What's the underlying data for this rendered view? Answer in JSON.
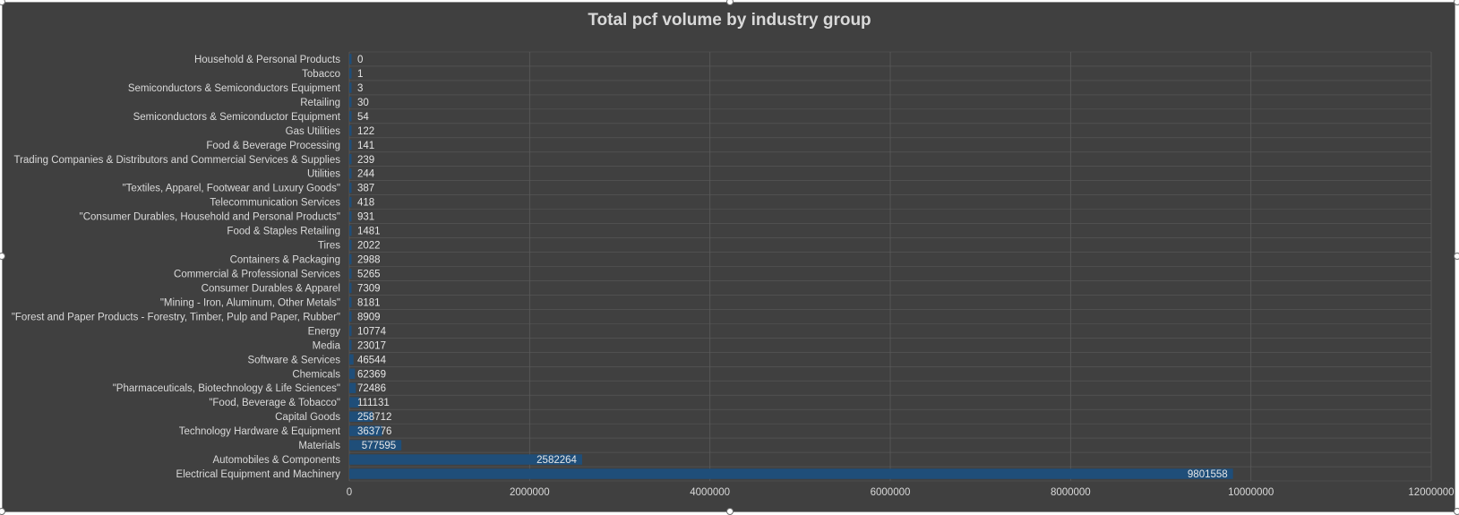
{
  "chart_data": {
    "type": "bar",
    "orientation": "horizontal",
    "title": "Total pcf volume by industry group",
    "xlim": [
      0,
      12000000
    ],
    "xticks": [
      "0",
      "2000000",
      "4000000",
      "6000000",
      "8000000",
      "10000000",
      "12000000"
    ],
    "grid": true,
    "categories": [
      "Household & Personal Products",
      "Tobacco",
      "Semiconductors & Semiconductors Equipment",
      "Retailing",
      "Semiconductors & Semiconductor Equipment",
      "Gas Utilities",
      "Food & Beverage Processing",
      "Trading Companies & Distributors and Commercial Services & Supplies",
      "Utilities",
      "\"Textiles, Apparel, Footwear and Luxury Goods\"",
      "Telecommunication Services",
      "\"Consumer Durables, Household and Personal Products\"",
      "Food & Staples Retailing",
      "Tires",
      "Containers & Packaging",
      "Commercial & Professional Services",
      "Consumer Durables & Apparel",
      "\"Mining - Iron, Aluminum, Other Metals\"",
      "\"Forest and Paper Products - Forestry, Timber, Pulp and Paper, Rubber\"",
      "Energy",
      "Media",
      "Software & Services",
      "Chemicals",
      "\"Pharmaceuticals, Biotechnology & Life Sciences\"",
      "\"Food, Beverage & Tobacco\"",
      "Capital Goods",
      "Technology Hardware & Equipment",
      "Materials",
      "Automobiles & Components",
      "Electrical Equipment and Machinery"
    ],
    "values": [
      0,
      1,
      3,
      30,
      54,
      122,
      141,
      239,
      244,
      387,
      418,
      931,
      1481,
      2022,
      2988,
      5265,
      7309,
      8181,
      8909,
      10774,
      23017,
      46544,
      62369,
      72486,
      111131,
      258712,
      363776,
      577595,
      2582264,
      9801558
    ],
    "data_labels": [
      "0",
      "1",
      "3",
      "30",
      "54",
      "122",
      "141",
      "239",
      "244",
      "387",
      "418",
      "931",
      "1481",
      "2022",
      "2988",
      "5265",
      "7309",
      "8181",
      "8909",
      "10774",
      "23017",
      "46544",
      "62369",
      "72486",
      "111131",
      "258712",
      "363776",
      "577595",
      "2582264",
      "9801558"
    ],
    "colors": {
      "bar": "#1f4e79",
      "background": "#404040",
      "grid": "#5a5a5a",
      "text": "#d9d9d9"
    }
  }
}
